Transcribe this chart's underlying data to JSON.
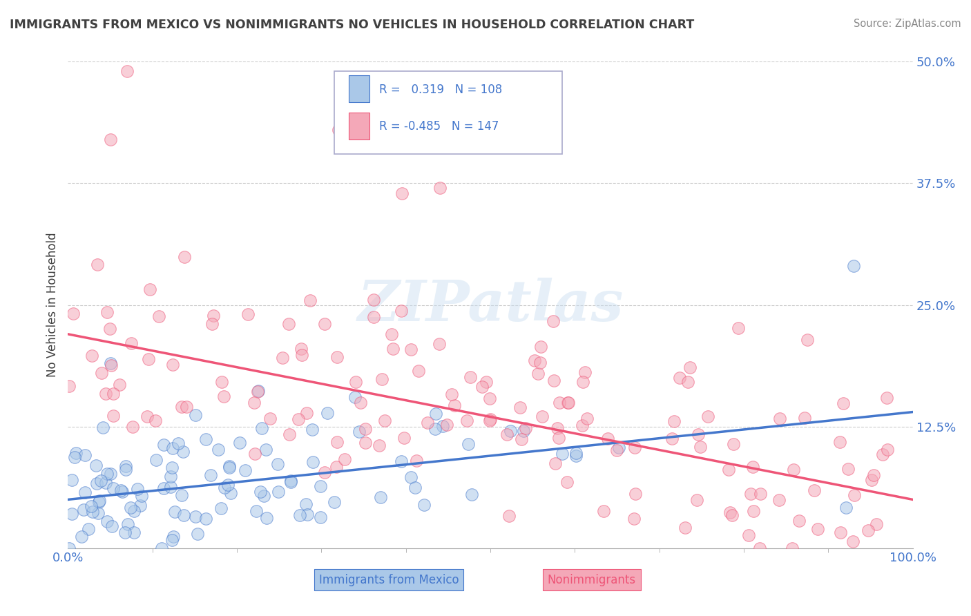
{
  "title": "IMMIGRANTS FROM MEXICO VS NONIMMIGRANTS NO VEHICLES IN HOUSEHOLD CORRELATION CHART",
  "source": "Source: ZipAtlas.com",
  "ylabel": "No Vehicles in Household",
  "xlim": [
    0.0,
    100.0
  ],
  "ylim": [
    0.0,
    50.0
  ],
  "yticks": [
    0.0,
    12.5,
    25.0,
    37.5,
    50.0
  ],
  "ytick_labels": [
    "",
    "12.5%",
    "25.0%",
    "37.5%",
    "50.0%"
  ],
  "xticks": [
    0,
    100
  ],
  "xtick_labels": [
    "0.0%",
    "100.0%"
  ],
  "blue_R": 0.319,
  "blue_N": 108,
  "pink_R": -0.485,
  "pink_N": 147,
  "blue_color": "#aac8e8",
  "pink_color": "#f4a8b8",
  "blue_line_color": "#4477cc",
  "pink_line_color": "#ee5577",
  "legend_blue_label": "Immigrants from Mexico",
  "legend_pink_label": "Nonimmigrants",
  "watermark": "ZIPatlas",
  "background_color": "#ffffff",
  "grid_color": "#cccccc",
  "title_color": "#404040",
  "tick_color": "#4477cc",
  "blue_trend_start": 5.0,
  "blue_trend_end": 14.0,
  "pink_trend_start": 22.0,
  "pink_trend_end": 5.0,
  "seed": 12345
}
